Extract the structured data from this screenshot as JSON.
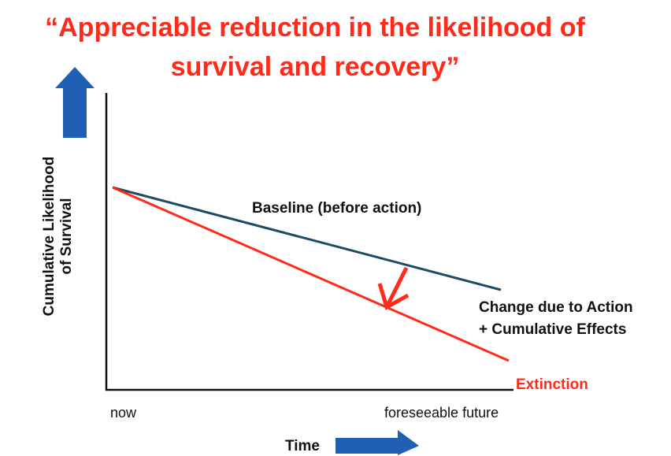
{
  "title": {
    "line1": "“Appreciable reduction in the likelihood of",
    "line2": "survival and recovery”"
  },
  "y_axis": {
    "line1": "Cumulative Likelihood",
    "line2": "of Survival"
  },
  "x_axis": {
    "label": "Time",
    "start": "now",
    "end": "foreseeable future"
  },
  "lines": {
    "baseline": "Baseline (before action)",
    "change_line1": "Change due to Action",
    "change_line2": "+ Cumulative Effects",
    "extinction": "Extinction"
  }
}
